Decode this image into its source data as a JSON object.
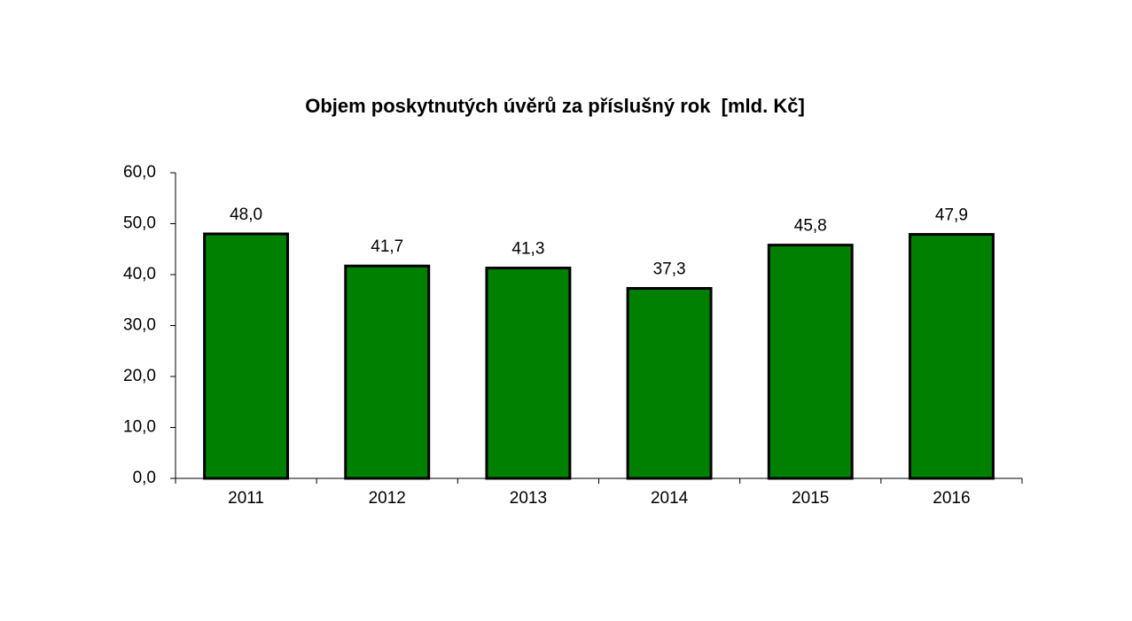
{
  "chart_data": {
    "type": "bar",
    "title": "Objem poskytnutých úvěrů za příslušný rok  [mld. Kč]",
    "categories": [
      "2011",
      "2012",
      "2013",
      "2014",
      "2015",
      "2016"
    ],
    "values": [
      48.0,
      41.7,
      41.3,
      37.3,
      45.8,
      47.9
    ],
    "value_labels": [
      "48,0",
      "41,7",
      "41,3",
      "37,3",
      "45,8",
      "47,9"
    ],
    "color": "#008000",
    "ylim": [
      0,
      60
    ],
    "yticks": [
      {
        "value": 0,
        "label": "0,0"
      },
      {
        "value": 10,
        "label": "10,0"
      },
      {
        "value": 20,
        "label": "20,0"
      },
      {
        "value": 30,
        "label": "30,0"
      },
      {
        "value": 40,
        "label": "40,0"
      },
      {
        "value": 50,
        "label": "50,0"
      },
      {
        "value": 60,
        "label": "60,0"
      }
    ],
    "grid": false
  }
}
